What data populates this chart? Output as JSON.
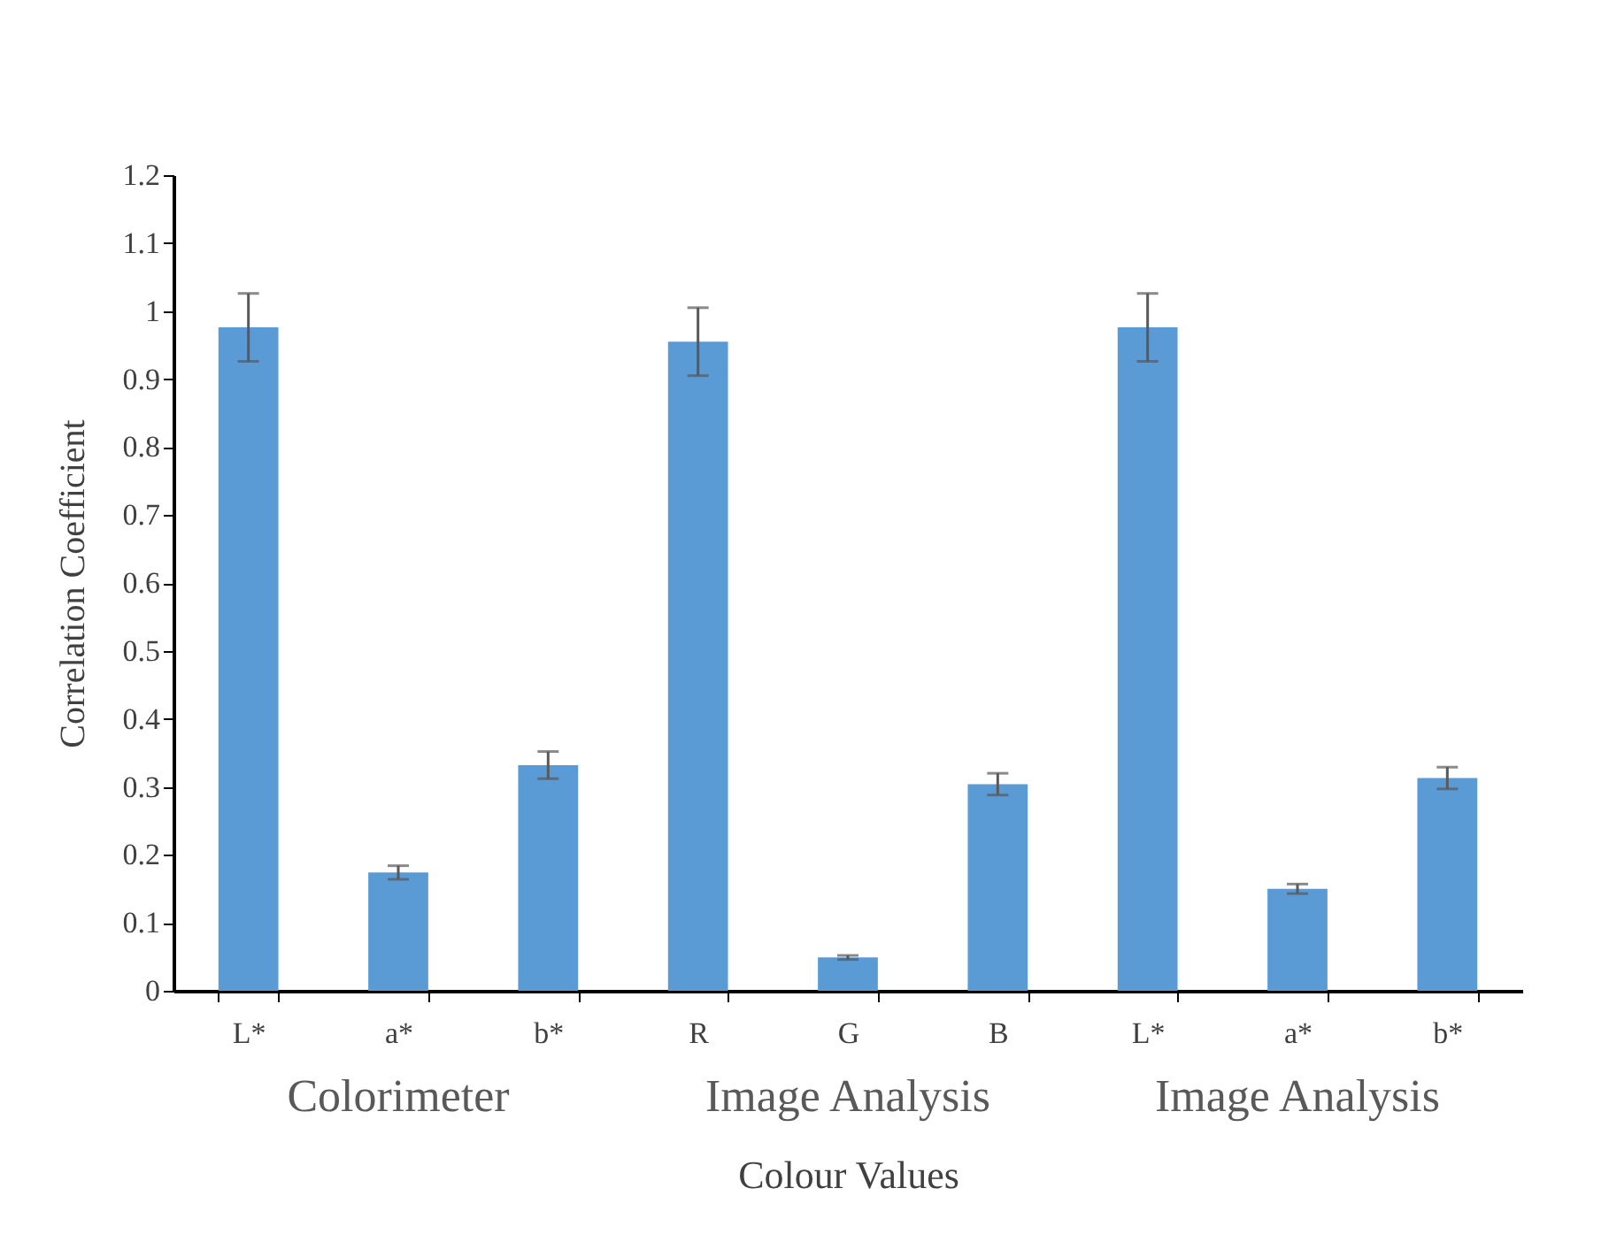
{
  "chart_data": {
    "type": "bar",
    "categories": [
      "L*",
      "a*",
      "b*",
      "R",
      "G",
      "B",
      "L*",
      "a*",
      "b*"
    ],
    "values": [
      0.976,
      0.174,
      0.332,
      0.955,
      0.049,
      0.304,
      0.976,
      0.15,
      0.313
    ],
    "errors": [
      0.05,
      0.01,
      0.02,
      0.05,
      0.003,
      0.016,
      0.05,
      0.007,
      0.016
    ],
    "color": "#5b9bd5",
    "xlabel": "Colour Values",
    "ylabel": "Correlation Coefficient",
    "ylim": [
      0,
      1.2
    ],
    "yticks": [
      0,
      0.1,
      0.2,
      0.3,
      0.4,
      0.5,
      0.6,
      0.7,
      0.8,
      0.9,
      1,
      1.1,
      1.2
    ],
    "annotations": [
      "Colorimeter",
      "Image Analysis",
      "Image Analysis"
    ],
    "grid": false
  }
}
